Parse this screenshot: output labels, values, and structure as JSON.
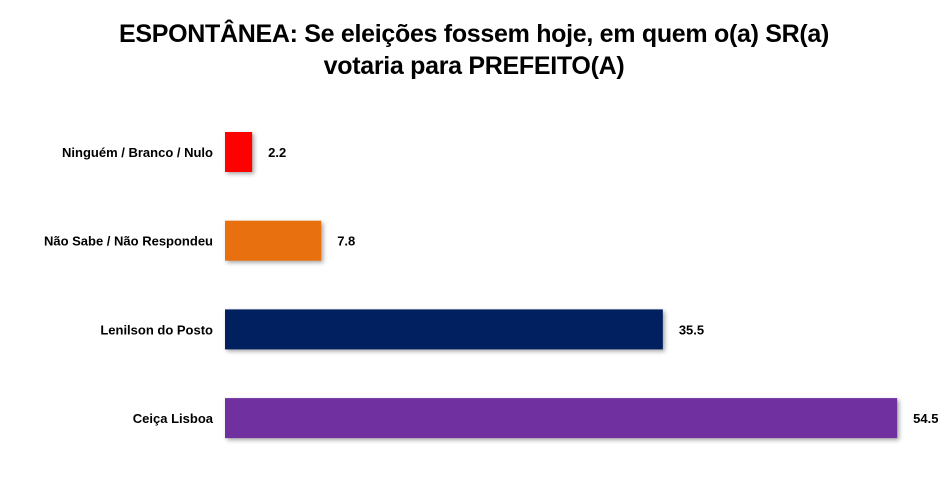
{
  "chart_data": {
    "type": "bar",
    "orientation": "horizontal",
    "title_line1": "ESPONTÂNEA: Se eleições fossem hoje, em quem o(a) SR(a)",
    "title_line2": "votaria para PREFEITO(A)",
    "xlabel": "",
    "ylabel": "",
    "xlim": [
      0,
      60
    ],
    "grid": false,
    "legend": "none",
    "categories": [
      "Ninguém / Branco / Nulo",
      "Não Sabe / Não Respondeu",
      "Lenilson do Posto",
      "Ceiça Lisboa"
    ],
    "values": [
      2.2,
      7.8,
      35.5,
      54.5
    ],
    "value_labels": [
      "2.2",
      "7.8",
      "35.5",
      "54.5"
    ],
    "colors": [
      "#ff0000",
      "#e8700f",
      "#002060",
      "#7030a0"
    ]
  }
}
